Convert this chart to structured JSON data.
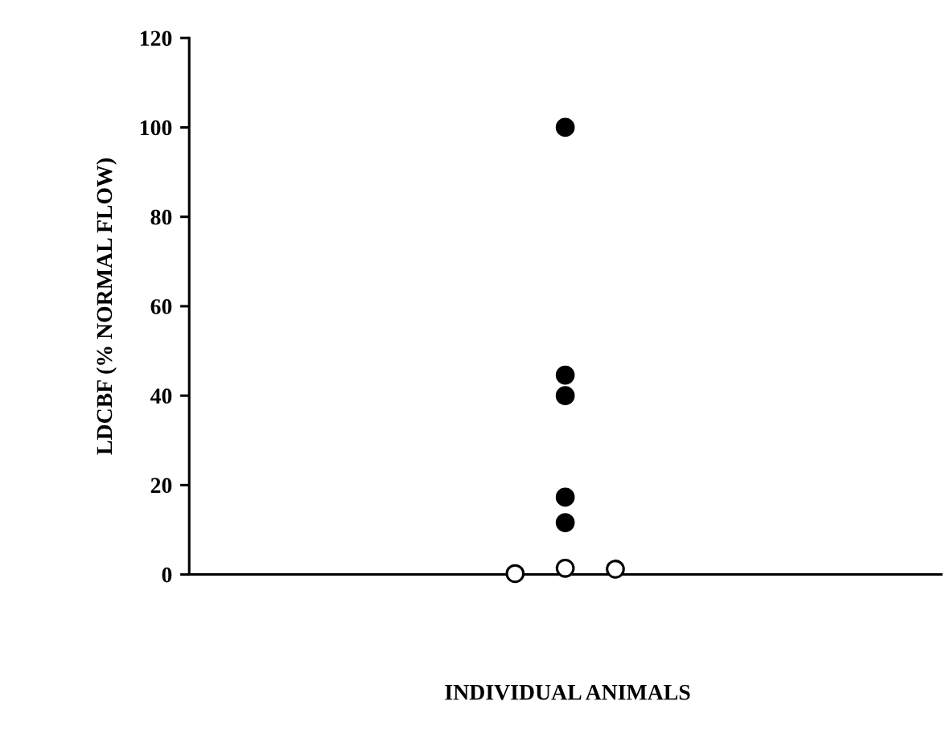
{
  "chart_data": {
    "type": "scatter",
    "ylabel": "LDCBF (% NORMAL FLOW)",
    "annotations": [
      "INDIVIDUAL ANIMALS"
    ],
    "categories": [
      null,
      null,
      null,
      null,
      null,
      null,
      null,
      null,
      null,
      null,
      null,
      null,
      null,
      null,
      null
    ],
    "ylim": [
      0,
      120
    ],
    "yticks": [
      0,
      20,
      40,
      60,
      80,
      100,
      120
    ],
    "grid": false,
    "legend": false,
    "marker": "circle",
    "series": [
      {
        "color": "#000000",
        "values": [
          null,
          null,
          null,
          null,
          null,
          null,
          null,
          100,
          null,
          null,
          null,
          null,
          null,
          null,
          null
        ]
      },
      {
        "color": "#000000",
        "values": [
          null,
          null,
          null,
          null,
          null,
          null,
          null,
          44.6,
          null,
          null,
          null,
          null,
          null,
          null,
          null
        ]
      },
      {
        "color": "#000000",
        "values": [
          null,
          null,
          null,
          null,
          null,
          null,
          null,
          40,
          null,
          null,
          null,
          null,
          null,
          null,
          null
        ]
      },
      {
        "color": "#000000",
        "values": [
          null,
          null,
          null,
          null,
          null,
          null,
          null,
          17.3,
          null,
          null,
          null,
          null,
          null,
          null,
          null
        ]
      },
      {
        "color": "#000000",
        "values": [
          null,
          null,
          null,
          null,
          null,
          null,
          null,
          11.6,
          null,
          null,
          null,
          null,
          null,
          null,
          null
        ]
      },
      {
        "color": "#ffffff",
        "values": [
          null,
          null,
          null,
          null,
          null,
          null,
          0.2,
          1.4,
          1.2,
          null,
          null,
          null,
          null,
          null,
          null
        ]
      }
    ]
  }
}
